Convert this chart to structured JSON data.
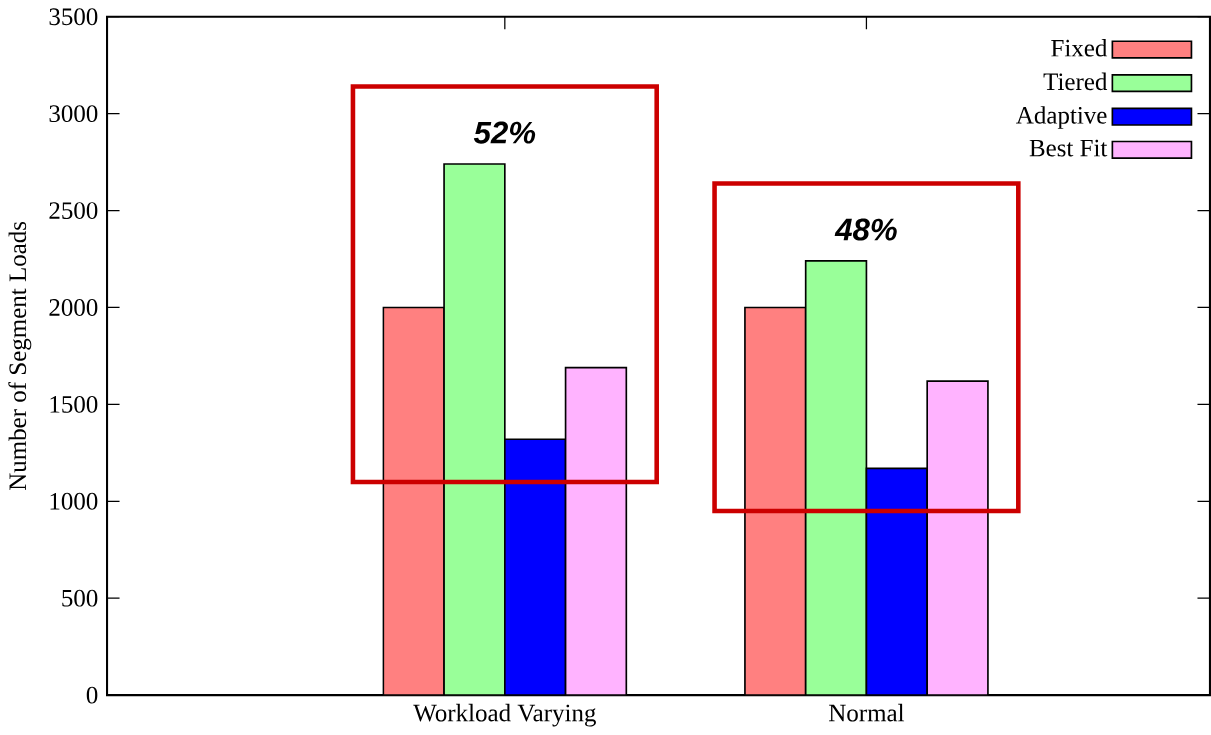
{
  "chart_data": {
    "type": "bar",
    "ylabel": "Number of Segment Loads",
    "categories": [
      "Workload Varying",
      "Normal"
    ],
    "series": [
      {
        "name": "Fixed",
        "color": "#ff8080",
        "values": [
          2000,
          2000
        ]
      },
      {
        "name": "Tiered",
        "color": "#99ff99",
        "values": [
          2740,
          2240
        ]
      },
      {
        "name": "Adaptive",
        "color": "#0000ff",
        "values": [
          1320,
          1170
        ]
      },
      {
        "name": "Best Fit",
        "color": "#ffb3ff",
        "values": [
          1690,
          1620
        ]
      }
    ],
    "ylim": [
      0,
      3500
    ],
    "yticks": [
      0,
      500,
      1000,
      1500,
      2000,
      2500,
      3000,
      3500
    ],
    "annotations": [
      "52%",
      "48%"
    ],
    "legend": "top right",
    "grid": false
  }
}
